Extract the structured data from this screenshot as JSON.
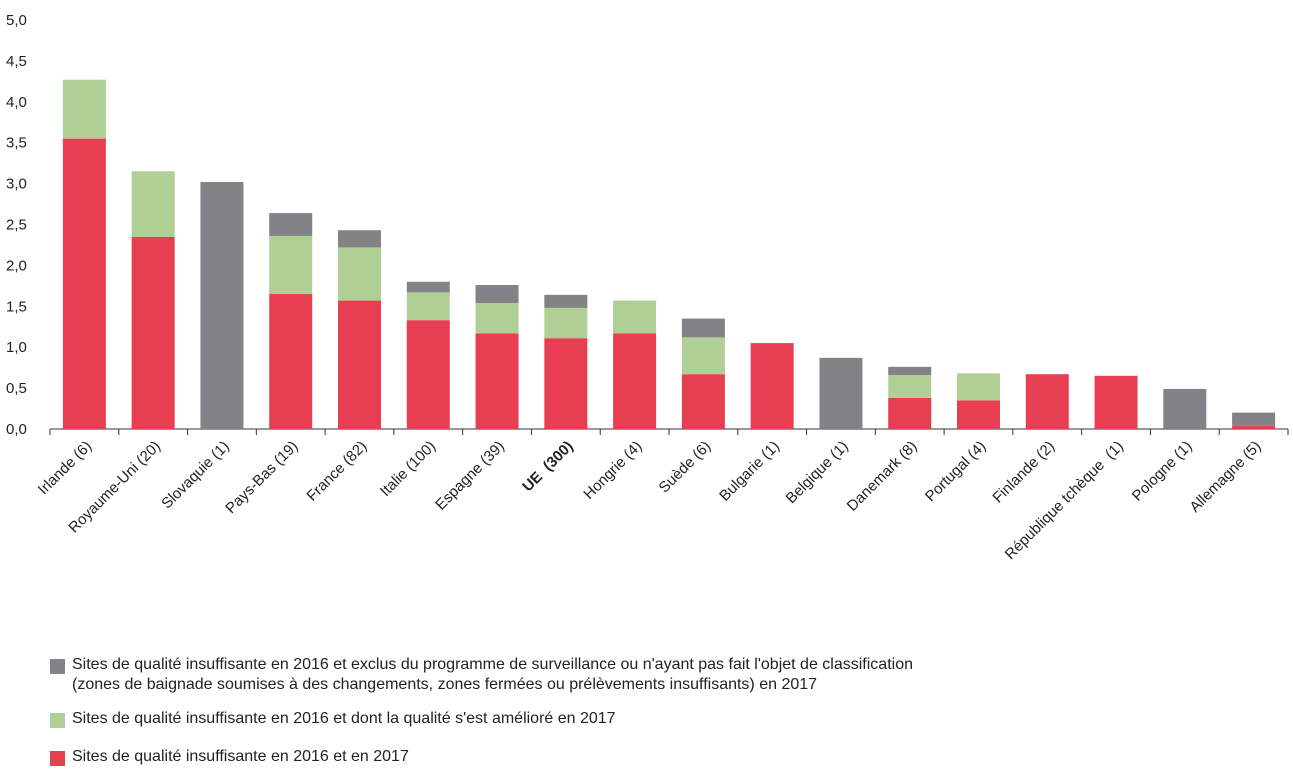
{
  "chart_data": {
    "type": "bar",
    "stacked": true,
    "categories": [
      "Irlande (6)",
      "Royaume-Uni (20)",
      "Slovaquie (1)",
      "Pays-Bas (19)",
      "France (82)",
      "Italie (100)",
      "Espagne (39)",
      "UE  (300)",
      "Hongrie (4)",
      "Suède (6)",
      "Bulgarie (1)",
      "Belgique (1)",
      "Danemark (8)",
      "Portugal (4)",
      "Finlande (2)",
      "République tchèque  (1)",
      "Pologne (1)",
      "Allemagne (5)"
    ],
    "bold_categories": [
      "UE  (300)"
    ],
    "series": [
      {
        "name": "Sites de qualité insuffisante en 2016 et en 2017",
        "color": "#e83e52",
        "values": [
          3.55,
          2.35,
          0,
          1.65,
          1.57,
          1.33,
          1.17,
          1.11,
          1.17,
          0.67,
          1.05,
          0,
          0.38,
          0.35,
          0.67,
          0.65,
          0,
          0.04
        ]
      },
      {
        "name": "Sites de qualité insuffisante en 2016 et dont la qualité s'est amélioré en 2017",
        "color": "#b0cf94",
        "values": [
          0.72,
          0.8,
          0,
          0.71,
          0.65,
          0.34,
          0.37,
          0.37,
          0.4,
          0.45,
          0,
          0,
          0.28,
          0.33,
          0,
          0,
          0,
          0
        ]
      },
      {
        "name": "Sites de qualité insuffisante en 2016 et exclus du programme de surveillance ou n'ayant pas fait l'objet de classification\n(zones de baignade soumises à des changements, zones fermées ou prélèvements insuffisants) en 2017",
        "color": "#838387",
        "values": [
          0,
          0,
          3.02,
          0.28,
          0.21,
          0.13,
          0.22,
          0.16,
          0,
          0.23,
          0,
          0.87,
          0.1,
          0,
          0,
          0,
          0.49,
          0.16
        ]
      }
    ],
    "ylim": [
      0,
      5.0
    ],
    "yticks": [
      "0,0",
      "0,5",
      "1,0",
      "1,5",
      "2,0",
      "2,5",
      "3,0",
      "3,5",
      "4,0",
      "4,5",
      "5,0"
    ],
    "legend_position": "bottom",
    "grid": false
  },
  "legend": [
    {
      "label": "Sites de qualité insuffisante en 2016 et exclus du programme de surveillance ou n'ayant pas fait l'objet de classification\n(zones de baignade soumises à des changements, zones fermées ou prélèvements insuffisants) en 2017",
      "color": "#838387"
    },
    {
      "label": "Sites de qualité insuffisante en 2016 et dont la qualité s'est amélioré en 2017",
      "color": "#b0cf94"
    },
    {
      "label": "Sites de qualité insuffisante en 2016 et en 2017",
      "color": "#e83e52"
    }
  ]
}
